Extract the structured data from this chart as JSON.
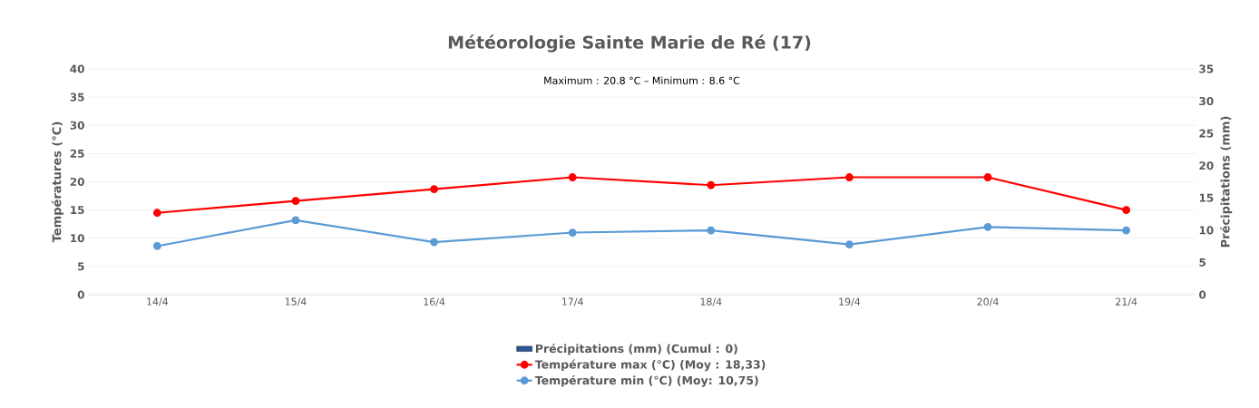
{
  "chart_data": {
    "type": "line",
    "title": "Météorologie Sainte Marie de Ré (17)",
    "annotations": [
      "Maximum : 20.8 °C – Minimum : 8.6 °C"
    ],
    "ylabel": "Températures (°C)",
    "y2label": "Précipitations (mm)",
    "categories": [
      "14/4",
      "15/4",
      "16/4",
      "17/4",
      "18/4",
      "19/4",
      "20/4",
      "21/4"
    ],
    "series": [
      {
        "name": "Précipitations (mm) (Cumul : 0)",
        "type": "bar",
        "axis": "y2",
        "color": "#2f5597",
        "values": [
          0,
          0,
          0,
          0,
          0,
          0,
          0,
          0
        ]
      },
      {
        "name": "Température max (°C) (Moy : 18,33)",
        "color": "#ff0000",
        "values": [
          14.5,
          16.6,
          18.7,
          20.8,
          19.4,
          20.8,
          20.8,
          15.0
        ]
      },
      {
        "name": "Température min (°C) (Moy: 10,75)",
        "color": "#5b9bd5",
        "values": [
          8.6,
          13.2,
          9.3,
          11.0,
          11.4,
          8.9,
          12.0,
          11.4
        ]
      }
    ],
    "ylim": [
      0,
      40
    ],
    "yticks": [
      0,
      5,
      10,
      15,
      20,
      25,
      30,
      35,
      40
    ],
    "y2lim": [
      0,
      35
    ],
    "y2ticks": [
      0,
      5,
      10,
      15,
      20,
      25,
      30,
      35
    ],
    "grid": "y",
    "legend": "bottom",
    "marker": "circle",
    "line_style": "solid"
  }
}
